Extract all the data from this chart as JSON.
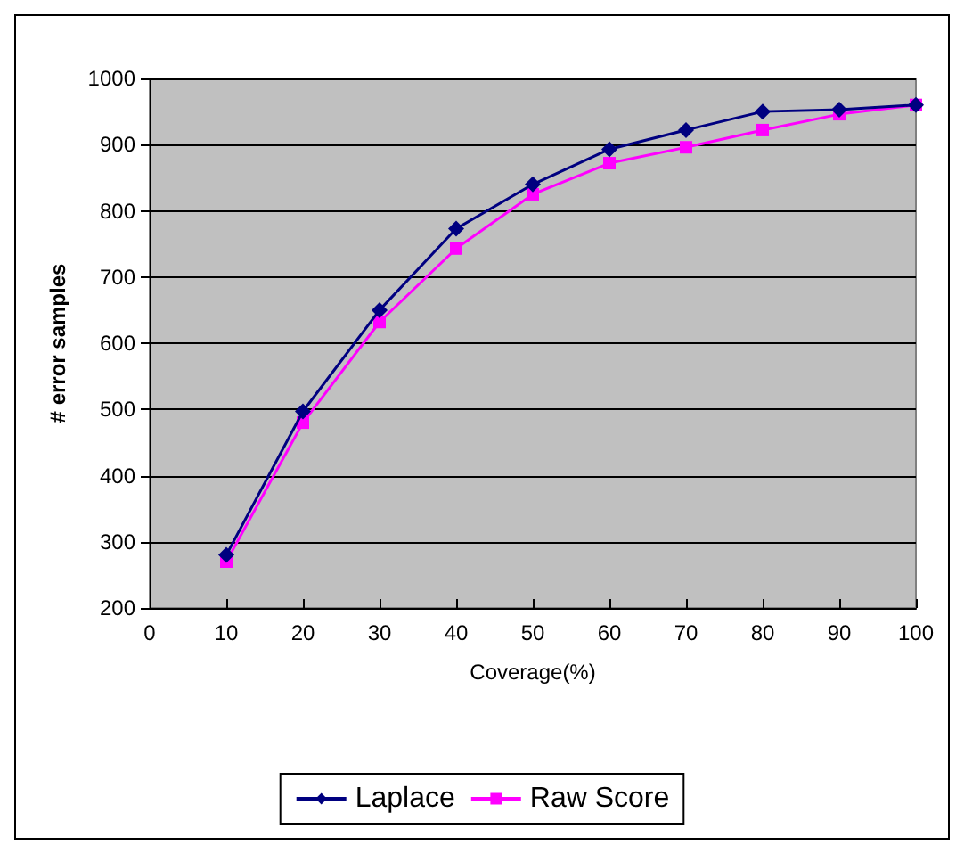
{
  "chart_data": {
    "type": "line",
    "xlabel": "Coverage(%)",
    "ylabel": "# error samples",
    "x": [
      10,
      20,
      30,
      40,
      50,
      60,
      70,
      80,
      90,
      100
    ],
    "series": [
      {
        "name": "Laplace",
        "color": "#000080",
        "marker": "diamond",
        "values": [
          280,
          497,
          650,
          773,
          840,
          893,
          922,
          950,
          953,
          960
        ]
      },
      {
        "name": "Raw Score",
        "color": "#ff00ff",
        "marker": "square",
        "values": [
          270,
          480,
          632,
          743,
          825,
          872,
          896,
          922,
          946,
          960
        ]
      }
    ],
    "xlim": [
      0,
      100
    ],
    "xticks": [
      0,
      10,
      20,
      30,
      40,
      50,
      60,
      70,
      80,
      90,
      100
    ],
    "ylim": [
      200,
      1000
    ],
    "yticks": [
      200,
      300,
      400,
      500,
      600,
      700,
      800,
      900,
      1000
    ],
    "grid": "y",
    "legend": "bottom",
    "line_style": "solid"
  }
}
